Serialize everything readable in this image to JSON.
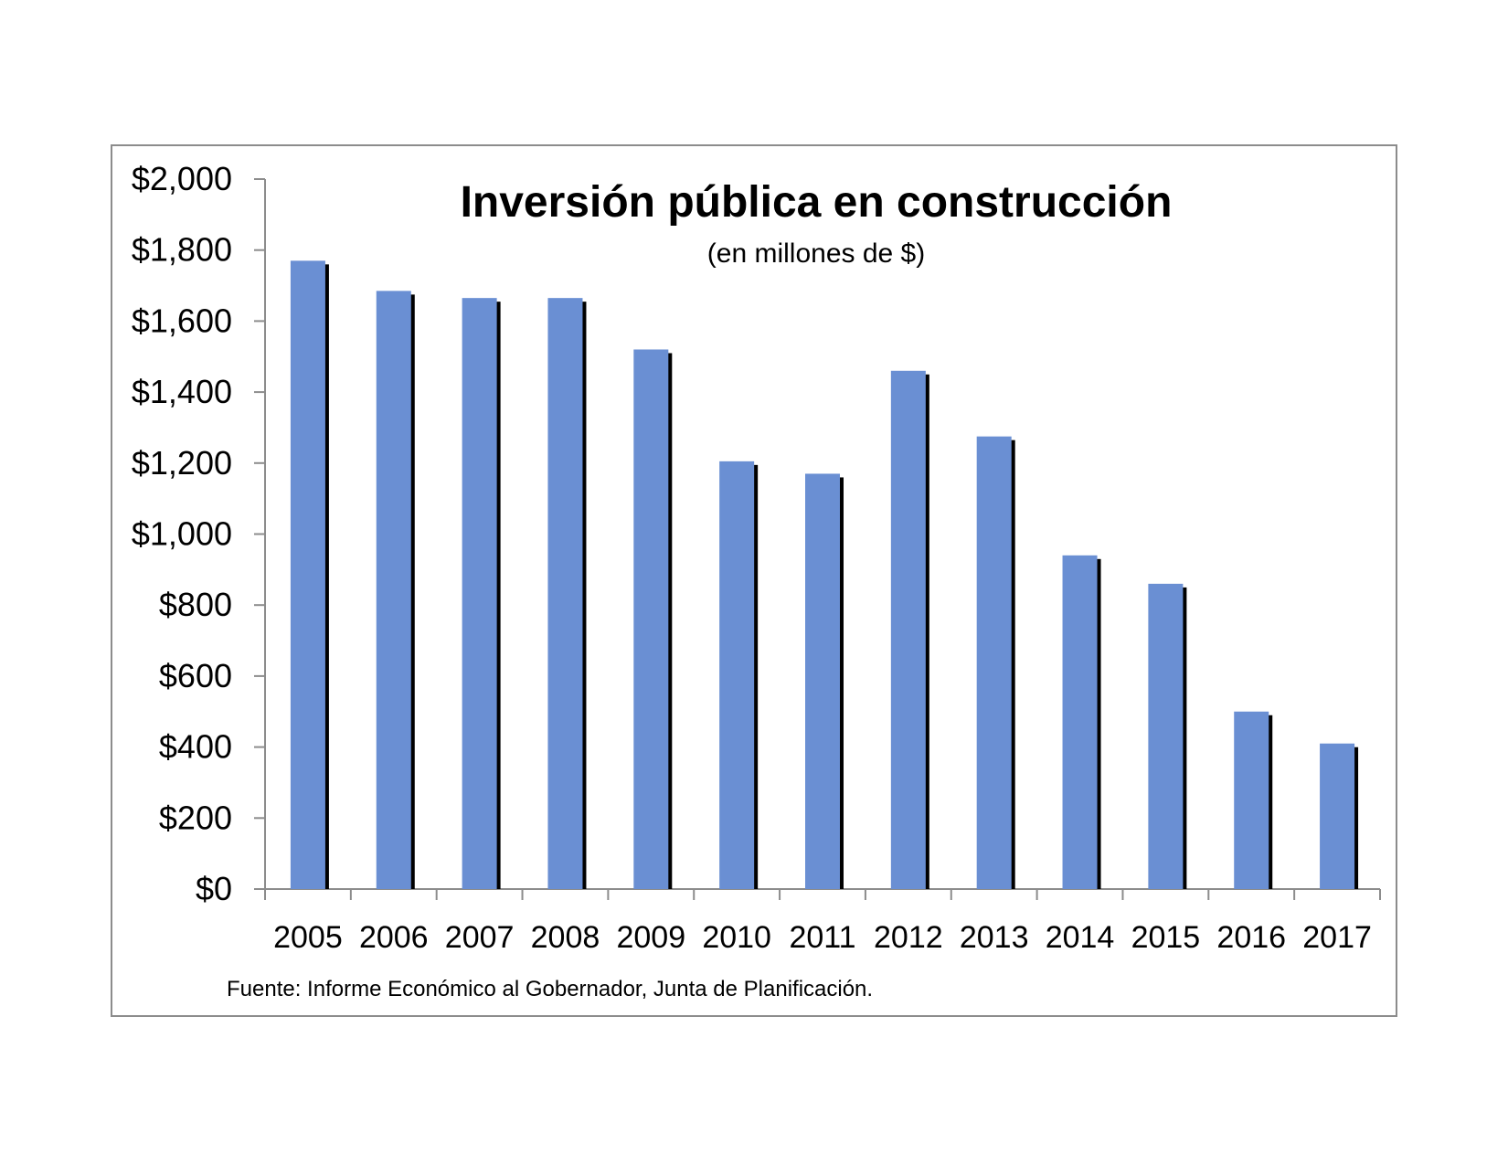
{
  "chart_data": {
    "type": "bar",
    "title": "Inversión pública en construcción",
    "subtitle": "(en millones de $)",
    "source": "Fuente: Informe Económico al Gobernador, Junta de Planificación.",
    "categories": [
      "2005",
      "2006",
      "2007",
      "2008",
      "2009",
      "2010",
      "2011",
      "2012",
      "2013",
      "2014",
      "2015",
      "2016",
      "2017"
    ],
    "values": [
      1770,
      1685,
      1665,
      1665,
      1520,
      1205,
      1170,
      1460,
      1275,
      940,
      860,
      500,
      410
    ],
    "ylim": [
      0,
      2000
    ],
    "yticks": [
      0,
      200,
      400,
      600,
      800,
      1000,
      1200,
      1400,
      1600,
      1800,
      2000
    ],
    "ytick_labels": [
      "$0",
      "$200",
      "$400",
      "$600",
      "$800",
      "$1,000",
      "$1,200",
      "$1,400",
      "$1,600",
      "$1,800",
      "$2,000"
    ],
    "grid": false,
    "colors": {
      "bar": "#6a8fd3",
      "bar_shadow": "#000000",
      "axis": "#8c8c8c"
    }
  }
}
